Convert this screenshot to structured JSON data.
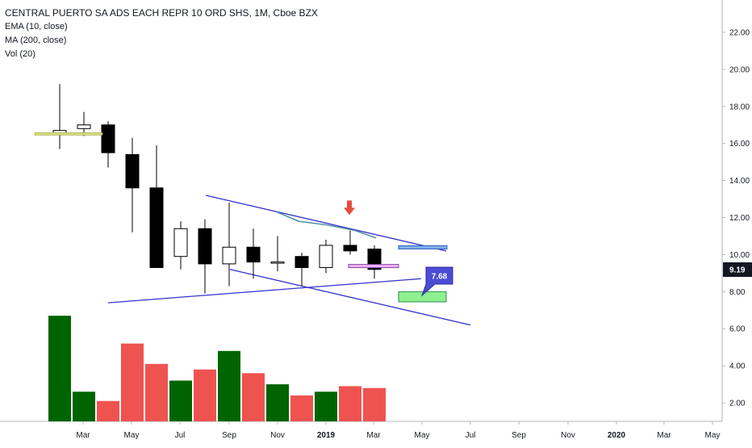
{
  "header": {
    "title": "CENTRAL PUERTO SA ADS EACH REPR 10 ORD SHS, 1M, Cboe BZX",
    "indicators": [
      "EMA (10, close)",
      "MA (200, close)",
      "Vol (20)"
    ]
  },
  "chart_data": {
    "type": "candlestick",
    "price_axis": {
      "ticks": [
        "2.00",
        "4.00",
        "6.00",
        "8.00",
        "10.00",
        "12.00",
        "14.00",
        "16.00",
        "18.00",
        "20.00",
        "22.00"
      ],
      "range": [
        1.0,
        23.0
      ]
    },
    "time_axis": {
      "ticks": [
        "Mar",
        "May",
        "Jul",
        "Sep",
        "Nov",
        "2019",
        "Mar",
        "May",
        "Jul",
        "Sep",
        "Nov",
        "2020",
        "Mar",
        "May"
      ],
      "bold": [
        "2019",
        "2020"
      ]
    },
    "current_price": {
      "label": "9.19",
      "value": 9.19
    },
    "candles": [
      {
        "o": 16.5,
        "h": 19.2,
        "l": 15.7,
        "c": 16.7
      },
      {
        "o": 16.8,
        "h": 17.7,
        "l": 16.4,
        "c": 17.0
      },
      {
        "o": 17.0,
        "h": 17.2,
        "l": 14.7,
        "c": 15.5
      },
      {
        "o": 15.4,
        "h": 16.3,
        "l": 11.2,
        "c": 13.6
      },
      {
        "o": 13.6,
        "h": 15.9,
        "l": 9.3,
        "c": 9.3
      },
      {
        "o": 9.9,
        "h": 11.8,
        "l": 9.2,
        "c": 11.4
      },
      {
        "o": 11.4,
        "h": 11.9,
        "l": 7.9,
        "c": 9.5
      },
      {
        "o": 9.5,
        "h": 12.8,
        "l": 8.3,
        "c": 10.4
      },
      {
        "o": 10.4,
        "h": 11.4,
        "l": 8.7,
        "c": 9.6
      },
      {
        "o": 9.6,
        "h": 11.0,
        "l": 9.1,
        "c": 9.6
      },
      {
        "o": 9.9,
        "h": 10.1,
        "l": 8.3,
        "c": 9.3
      },
      {
        "o": 9.3,
        "h": 10.8,
        "l": 9.0,
        "c": 10.5
      },
      {
        "o": 10.5,
        "h": 11.3,
        "l": 10.0,
        "c": 10.2
      },
      {
        "o": 10.3,
        "h": 10.5,
        "l": 8.7,
        "c": 9.2
      }
    ],
    "volume": {
      "values": [
        6.7,
        2.6,
        2.1,
        5.2,
        4.1,
        3.2,
        3.8,
        4.8,
        3.6,
        3.0,
        2.4,
        2.6,
        2.9,
        2.8
      ],
      "colors": [
        "#006400",
        "#006400",
        "#ef5350",
        "#ef5350",
        "#ef5350",
        "#006400",
        "#ef5350",
        "#006400",
        "#ef5350",
        "#006400",
        "#ef5350",
        "#006400",
        "#ef5350",
        "#ef5350"
      ]
    },
    "annotations": {
      "callout_label": "7.68",
      "callout_value": 7.68
    },
    "colors": {
      "up_candle": "#ffffff",
      "down_candle": "#000000",
      "vol_up": "#006400",
      "vol_down": "#ef5350",
      "trendline": "#3333cc",
      "ema": "#4a8fa0",
      "arrow": "#e74c3c",
      "callout_bg": "#4b4bd6"
    }
  }
}
